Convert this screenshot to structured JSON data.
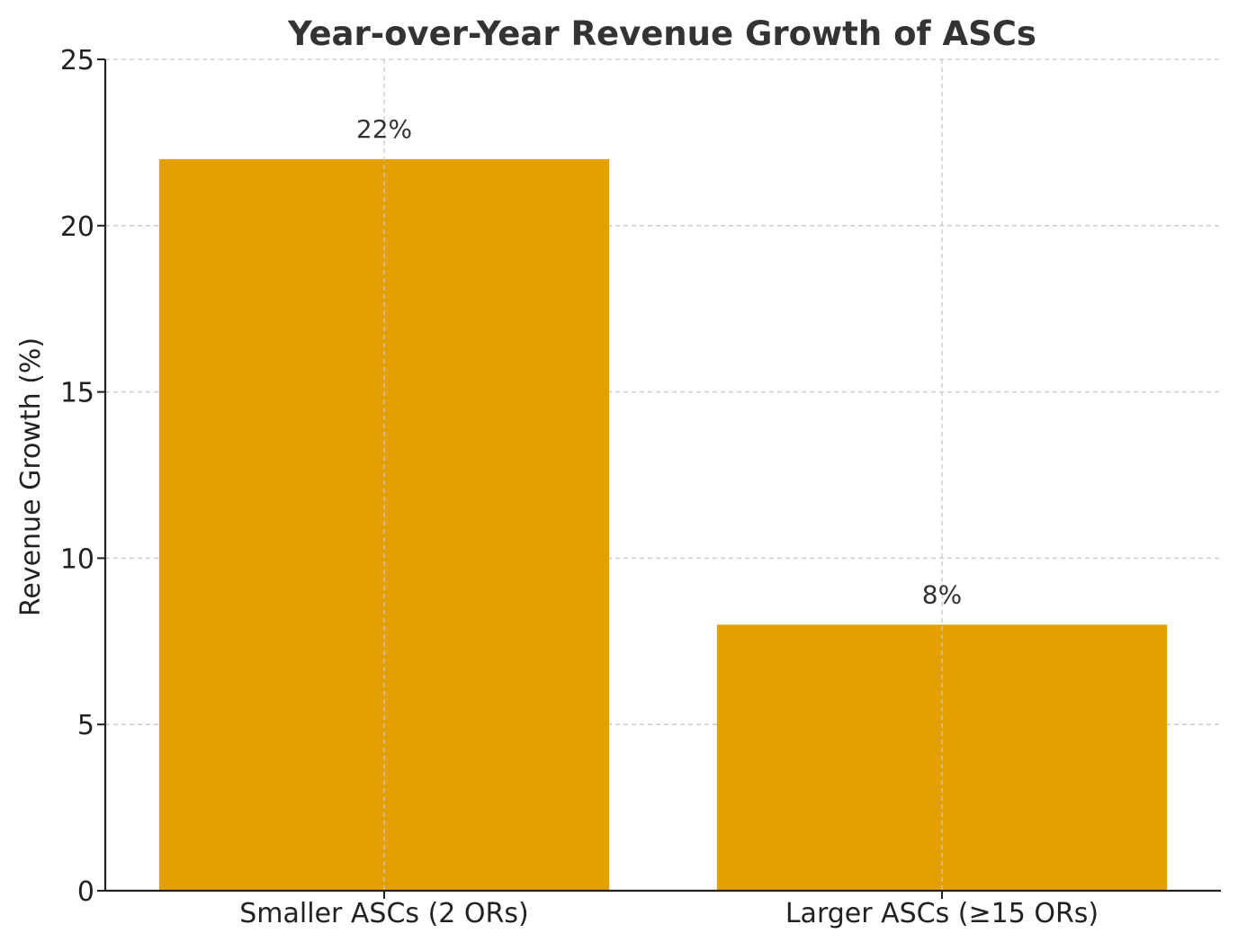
{
  "chart_data": {
    "type": "bar",
    "title": "Year-over-Year Revenue Growth of ASCs",
    "xlabel": "",
    "ylabel": "Revenue Growth (%)",
    "categories": [
      "Smaller ASCs (2 ORs)",
      "Larger ASCs (≥15 ORs)"
    ],
    "values": [
      22,
      8
    ],
    "data_labels": [
      "22%",
      "8%"
    ],
    "ylim": [
      0,
      25
    ],
    "yticks": [
      0,
      5,
      10,
      15,
      20,
      25
    ],
    "ytick_labels": [
      "0",
      "5",
      "10",
      "15",
      "20",
      "25"
    ],
    "grid": true,
    "legend": "none",
    "bar_color": "#E3A000"
  }
}
